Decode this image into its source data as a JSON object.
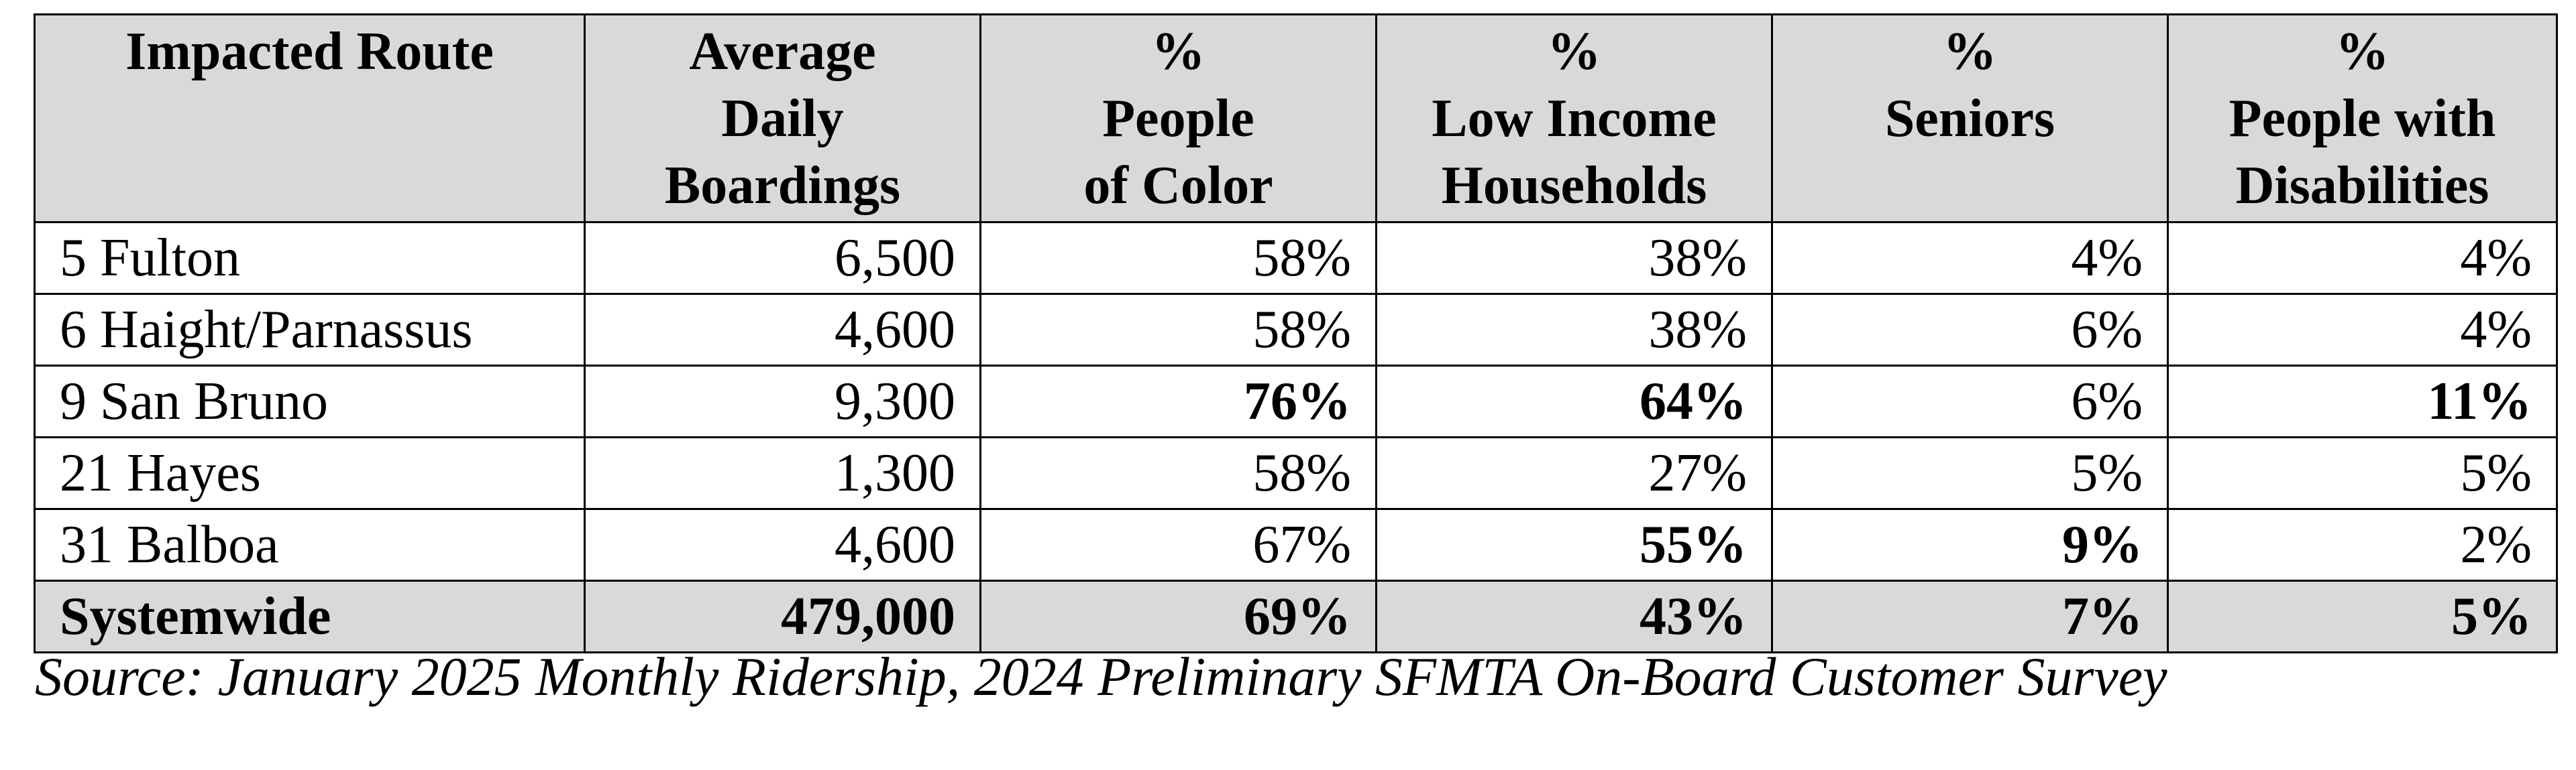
{
  "table": {
    "headers": [
      {
        "lines": [
          "Impacted Route"
        ]
      },
      {
        "lines": [
          "Average",
          "Daily",
          "Boardings"
        ]
      },
      {
        "lines": [
          "%",
          "People",
          "of Color"
        ]
      },
      {
        "lines": [
          "%",
          "Low Income",
          "Households"
        ]
      },
      {
        "lines": [
          "%",
          "Seniors"
        ]
      },
      {
        "lines": [
          "%",
          "People with",
          "Disabilities"
        ]
      }
    ],
    "rows": [
      {
        "route": "5 Fulton",
        "boardings": "6,500",
        "poc": "58%",
        "low_income": "38%",
        "seniors": "4%",
        "disabilities": "4%"
      },
      {
        "route": "6 Haight/Parnassus",
        "boardings": "4,600",
        "poc": "58%",
        "low_income": "38%",
        "seniors": "6%",
        "disabilities": "4%"
      },
      {
        "route": "9 San Bruno",
        "boardings": "9,300",
        "poc": "76%",
        "low_income": "64%",
        "seniors": "6%",
        "disabilities": "11%"
      },
      {
        "route": "21 Hayes",
        "boardings": "1,300",
        "poc": "58%",
        "low_income": "27%",
        "seniors": "5%",
        "disabilities": "5%"
      },
      {
        "route": "31 Balboa",
        "boardings": "4,600",
        "poc": "67%",
        "low_income": "55%",
        "seniors": "9%",
        "disabilities": "2%"
      }
    ],
    "total": {
      "route": "Systemwide",
      "boardings": "479,000",
      "poc": "69%",
      "low_income": "43%",
      "seniors": "7%",
      "disabilities": "5%"
    }
  },
  "source": "Source: January 2025 Monthly Ridership, 2024 Preliminary SFMTA On-Board Customer Survey",
  "colors": {
    "header_bg": "#d9d9d9",
    "border": "#000000",
    "text": "#000000"
  }
}
